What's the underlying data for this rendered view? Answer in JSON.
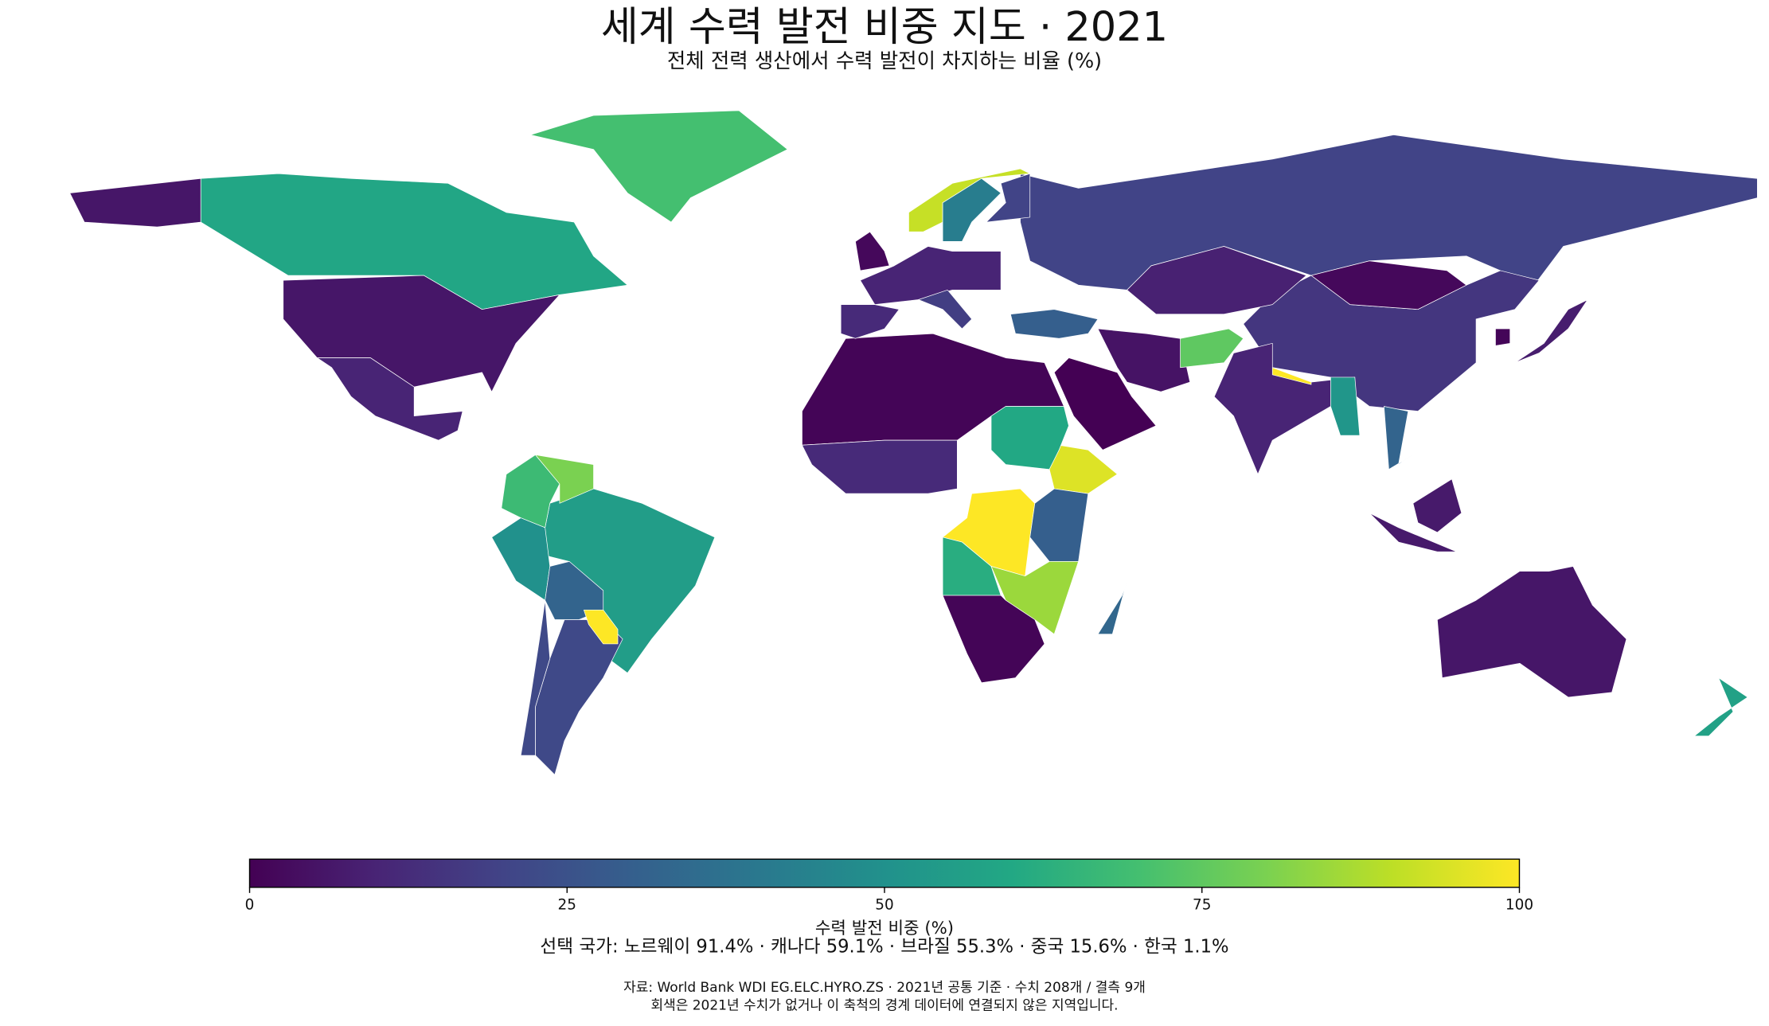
{
  "chart_data": {
    "type": "choropleth",
    "title": "세계 수력 발전 비중 지도 · 2021",
    "subtitle": "전체 전력 생산에서 수력 발전이 차지하는 비율 (%)",
    "colormap": "viridis",
    "clim": [
      0,
      100
    ],
    "cticks": [
      0,
      25,
      50,
      75,
      100
    ],
    "colorbar_label": "수력 발전 비중 (%)",
    "values": [
      59.1,
      6,
      10,
      70,
      55.3,
      22,
      50,
      68,
      80,
      22,
      32,
      100,
      20,
      15.6,
      2,
      10,
      9,
      0,
      5,
      1,
      95,
      60,
      100,
      12,
      30,
      62,
      85,
      1,
      33,
      91.4,
      42,
      20,
      10,
      12,
      2,
      18,
      30,
      32,
      7,
      8,
      6,
      57,
      1.1,
      100,
      52,
      75
    ],
    "annotation": "선택 국가: 노르웨이 91.4% · 캐나다 59.1% · 브라질 55.3% · 중국 15.6% · 한국 1.1%",
    "source": "자료: World Bank WDI EG.ELC.HYRO.ZS · 2021년 공통 기준 · 수치 208개 / 결측 9개",
    "note": "회색은 2021년 수치가 없거나 이 축척의 경계 데이터에 연결되지 않은 지역입니다."
  }
}
